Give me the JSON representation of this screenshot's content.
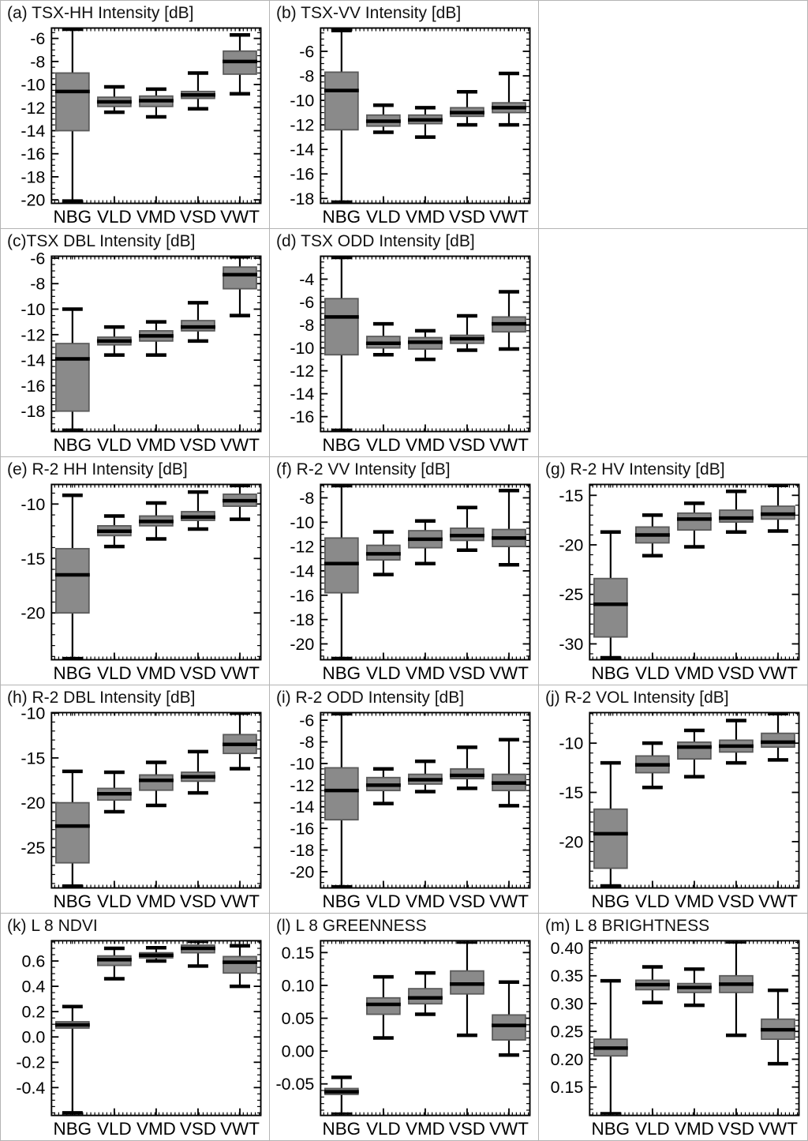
{
  "style": {
    "box_fill": "#8a8a8a",
    "box_border": "#5a5a5a",
    "line_color": "#000000",
    "grid_line": "#b4b4b4",
    "background": "#ffffff"
  },
  "chart_data": [
    {
      "type": "box",
      "title": "(a) TSX-HH Intensity [dB]",
      "categories": [
        "NBG",
        "VLD",
        "VMD",
        "VSD",
        "VWT"
      ],
      "ylim": [
        -20.3,
        -5.1
      ],
      "ytick_vals": [
        -6,
        -8,
        -10,
        -12,
        -14,
        -16,
        -18,
        -20
      ],
      "ytick_labels": [
        "-6",
        "-8",
        "-10",
        "-12",
        "-14",
        "-16",
        "-18",
        "-20"
      ],
      "yminor_div": 4,
      "boxes": [
        {
          "cat": "NBG",
          "low": -20.1,
          "q1": -14.0,
          "median": -10.6,
          "q3": -9.0,
          "high": -5.2
        },
        {
          "cat": "VLD",
          "low": -12.4,
          "q1": -11.9,
          "median": -11.5,
          "q3": -11.1,
          "high": -10.2
        },
        {
          "cat": "VMD",
          "low": -12.8,
          "q1": -11.9,
          "median": -11.4,
          "q3": -11.0,
          "high": -10.4
        },
        {
          "cat": "VSD",
          "low": -12.1,
          "q1": -11.2,
          "median": -10.9,
          "q3": -10.6,
          "high": -9.0
        },
        {
          "cat": "VWT",
          "low": -10.8,
          "q1": -9.1,
          "median": -8.0,
          "q3": -7.1,
          "high": -5.7
        }
      ]
    },
    {
      "type": "box",
      "title": "(b) TSX-VV Intensity [dB]",
      "categories": [
        "NBG",
        "VLD",
        "VMD",
        "VSD",
        "VWT"
      ],
      "ylim": [
        -18.4,
        -4.1
      ],
      "ytick_vals": [
        -6,
        -8,
        -10,
        -12,
        -14,
        -16,
        -18
      ],
      "ytick_labels": [
        "-6",
        "-8",
        "-10",
        "-12",
        "-14",
        "-16",
        "-18"
      ],
      "yminor_div": 4,
      "boxes": [
        {
          "cat": "NBG",
          "low": -18.3,
          "q1": -12.4,
          "median": -9.2,
          "q3": -7.7,
          "high": -4.3
        },
        {
          "cat": "VLD",
          "low": -12.6,
          "q1": -12.1,
          "median": -11.7,
          "q3": -11.2,
          "high": -10.4
        },
        {
          "cat": "VMD",
          "low": -13.0,
          "q1": -11.9,
          "median": -11.6,
          "q3": -11.2,
          "high": -10.6
        },
        {
          "cat": "VSD",
          "low": -12.0,
          "q1": -11.3,
          "median": -11.0,
          "q3": -10.6,
          "high": -9.3
        },
        {
          "cat": "VWT",
          "low": -12.0,
          "q1": -11.0,
          "median": -10.6,
          "q3": -10.2,
          "high": -7.8
        }
      ]
    },
    {
      "type": "box",
      "title": "(c)TSX DBL Intensity [dB]",
      "categories": [
        "NBG",
        "VLD",
        "VMD",
        "VSD",
        "VWT"
      ],
      "ylim": [
        -19.6,
        -5.85
      ],
      "ytick_vals": [
        -6,
        -8,
        -10,
        -12,
        -14,
        -16,
        -18
      ],
      "ytick_labels": [
        "-6",
        "-8",
        "-10",
        "-12",
        "-14",
        "-16",
        "-18"
      ],
      "yminor_div": 4,
      "boxes": [
        {
          "cat": "NBG",
          "low": -19.5,
          "q1": -18.0,
          "median": -13.9,
          "q3": -12.7,
          "high": -10.0
        },
        {
          "cat": "VLD",
          "low": -13.6,
          "q1": -12.8,
          "median": -12.5,
          "q3": -12.2,
          "high": -11.4
        },
        {
          "cat": "VMD",
          "low": -13.6,
          "q1": -12.5,
          "median": -12.1,
          "q3": -11.7,
          "high": -11.0
        },
        {
          "cat": "VSD",
          "low": -12.5,
          "q1": -11.7,
          "median": -11.4,
          "q3": -10.9,
          "high": -9.5
        },
        {
          "cat": "VWT",
          "low": -10.5,
          "q1": -8.4,
          "median": -7.3,
          "q3": -6.7,
          "high": -5.9
        }
      ]
    },
    {
      "type": "box",
      "title": "(d) TSX ODD Intensity [dB]",
      "categories": [
        "NBG",
        "VLD",
        "VMD",
        "VSD",
        "VWT"
      ],
      "ylim": [
        -17.3,
        -2.0
      ],
      "ytick_vals": [
        -4,
        -6,
        -8,
        -10,
        -12,
        -14,
        -16
      ],
      "ytick_labels": [
        "-4",
        "-6",
        "-8",
        "-10",
        "-12",
        "-14",
        "-16"
      ],
      "yminor_div": 4,
      "boxes": [
        {
          "cat": "NBG",
          "low": -17.2,
          "q1": -10.6,
          "median": -7.3,
          "q3": -5.7,
          "high": -2.1
        },
        {
          "cat": "VLD",
          "low": -10.6,
          "q1": -10.0,
          "median": -9.6,
          "q3": -9.0,
          "high": -7.9
        },
        {
          "cat": "VMD",
          "low": -11.0,
          "q1": -10.1,
          "median": -9.5,
          "q3": -9.1,
          "high": -8.5
        },
        {
          "cat": "VSD",
          "low": -10.2,
          "q1": -9.6,
          "median": -9.2,
          "q3": -8.9,
          "high": -7.2
        },
        {
          "cat": "VWT",
          "low": -10.1,
          "q1": -8.6,
          "median": -7.9,
          "q3": -7.3,
          "high": -5.1
        }
      ]
    },
    {
      "type": "box",
      "title": "(e) R-2 HH Intensity [dB]",
      "categories": [
        "NBG",
        "VLD",
        "VMD",
        "VSD",
        "VWT"
      ],
      "ylim": [
        -24.3,
        -8.2
      ],
      "ytick_vals": [
        -10,
        -15,
        -20
      ],
      "ytick_labels": [
        "-10",
        "-15",
        "-20"
      ],
      "yminor_div": 5,
      "boxes": [
        {
          "cat": "NBG",
          "low": -24.2,
          "q1": -20.0,
          "median": -16.5,
          "q3": -14.1,
          "high": -9.2
        },
        {
          "cat": "VLD",
          "low": -13.9,
          "q1": -12.9,
          "median": -12.5,
          "q3": -12.0,
          "high": -11.1
        },
        {
          "cat": "VMD",
          "low": -13.2,
          "q1": -12.0,
          "median": -11.6,
          "q3": -11.1,
          "high": -9.9
        },
        {
          "cat": "VSD",
          "low": -12.3,
          "q1": -11.5,
          "median": -11.2,
          "q3": -10.7,
          "high": -8.9
        },
        {
          "cat": "VWT",
          "low": -11.4,
          "q1": -10.2,
          "median": -9.7,
          "q3": -9.1,
          "high": -8.3
        }
      ]
    },
    {
      "type": "box",
      "title": "(f) R-2 VV Intensity [dB]",
      "categories": [
        "NBG",
        "VLD",
        "VMD",
        "VSD",
        "VWT"
      ],
      "ylim": [
        -21.3,
        -6.9
      ],
      "ytick_vals": [
        -8,
        -10,
        -12,
        -14,
        -16,
        -18,
        -20
      ],
      "ytick_labels": [
        "-8",
        "-10",
        "-12",
        "-14",
        "-16",
        "-18",
        "-20"
      ],
      "yminor_div": 4,
      "boxes": [
        {
          "cat": "NBG",
          "low": -21.2,
          "q1": -15.8,
          "median": -13.4,
          "q3": -11.3,
          "high": -7.0
        },
        {
          "cat": "VLD",
          "low": -14.3,
          "q1": -13.1,
          "median": -12.6,
          "q3": -11.9,
          "high": -10.8
        },
        {
          "cat": "VMD",
          "low": -13.4,
          "q1": -12.1,
          "median": -11.4,
          "q3": -10.7,
          "high": -9.9
        },
        {
          "cat": "VSD",
          "low": -12.3,
          "q1": -11.5,
          "median": -11.1,
          "q3": -10.5,
          "high": -8.8
        },
        {
          "cat": "VWT",
          "low": -13.5,
          "q1": -12.0,
          "median": -11.3,
          "q3": -10.6,
          "high": -7.4
        }
      ]
    },
    {
      "type": "box",
      "title": "(g) R-2 HV Intensity [dB]",
      "categories": [
        "NBG",
        "VLD",
        "VMD",
        "VSD",
        "VWT"
      ],
      "ylim": [
        -31.6,
        -13.9
      ],
      "ytick_vals": [
        -15,
        -20,
        -25,
        -30
      ],
      "ytick_labels": [
        "-15",
        "-20",
        "-25",
        "-30"
      ],
      "yminor_div": 5,
      "boxes": [
        {
          "cat": "NBG",
          "low": -31.4,
          "q1": -29.3,
          "median": -26.0,
          "q3": -23.4,
          "high": -18.7
        },
        {
          "cat": "VLD",
          "low": -21.1,
          "q1": -19.8,
          "median": -19.0,
          "q3": -18.2,
          "high": -17.0
        },
        {
          "cat": "VMD",
          "low": -20.2,
          "q1": -18.5,
          "median": -17.4,
          "q3": -16.8,
          "high": -15.8
        },
        {
          "cat": "VSD",
          "low": -18.7,
          "q1": -17.7,
          "median": -17.3,
          "q3": -16.5,
          "high": -14.6
        },
        {
          "cat": "VWT",
          "low": -18.6,
          "q1": -17.4,
          "median": -16.9,
          "q3": -16.1,
          "high": -14.0
        }
      ]
    },
    {
      "type": "box",
      "title": "(h) R-2 DBL Intensity [dB]",
      "categories": [
        "NBG",
        "VLD",
        "VMD",
        "VSD",
        "VWT"
      ],
      "ylim": [
        -29.5,
        -9.95
      ],
      "ytick_vals": [
        -10,
        -15,
        -20,
        -25
      ],
      "ytick_labels": [
        "-10",
        "-15",
        "-20",
        "-25"
      ],
      "yminor_div": 5,
      "boxes": [
        {
          "cat": "NBG",
          "low": -29.3,
          "q1": -26.7,
          "median": -22.6,
          "q3": -20.0,
          "high": -16.5
        },
        {
          "cat": "VLD",
          "low": -21.0,
          "q1": -19.7,
          "median": -19.0,
          "q3": -18.4,
          "high": -16.6
        },
        {
          "cat": "VMD",
          "low": -20.3,
          "q1": -18.6,
          "median": -17.5,
          "q3": -16.9,
          "high": -15.5
        },
        {
          "cat": "VSD",
          "low": -18.9,
          "q1": -17.6,
          "median": -17.1,
          "q3": -16.6,
          "high": -14.3
        },
        {
          "cat": "VWT",
          "low": -16.2,
          "q1": -14.5,
          "median": -13.5,
          "q3": -12.4,
          "high": -10.0
        }
      ]
    },
    {
      "type": "box",
      "title": "(i) R-2 ODD Intensity [dB]",
      "categories": [
        "NBG",
        "VLD",
        "VMD",
        "VSD",
        "VWT"
      ],
      "ylim": [
        -21.5,
        -5.3
      ],
      "ytick_vals": [
        -6,
        -8,
        -10,
        -12,
        -14,
        -16,
        -18,
        -20
      ],
      "ytick_labels": [
        "-6",
        "-8",
        "-10",
        "-12",
        "-14",
        "-16",
        "-18",
        "-20"
      ],
      "yminor_div": 4,
      "boxes": [
        {
          "cat": "NBG",
          "low": -21.4,
          "q1": -15.2,
          "median": -12.5,
          "q3": -10.4,
          "high": -5.4
        },
        {
          "cat": "VLD",
          "low": -13.7,
          "q1": -12.5,
          "median": -12.0,
          "q3": -11.3,
          "high": -10.5
        },
        {
          "cat": "VMD",
          "low": -12.6,
          "q1": -11.9,
          "median": -11.5,
          "q3": -11.0,
          "high": -9.8
        },
        {
          "cat": "VSD",
          "low": -12.3,
          "q1": -11.4,
          "median": -11.1,
          "q3": -10.5,
          "high": -8.5
        },
        {
          "cat": "VWT",
          "low": -13.9,
          "q1": -12.5,
          "median": -11.8,
          "q3": -11.0,
          "high": -7.8
        }
      ]
    },
    {
      "type": "box",
      "title": "(j) R-2 VOL Intensity [dB]",
      "categories": [
        "NBG",
        "VLD",
        "VMD",
        "VSD",
        "VWT"
      ],
      "ylim": [
        -24.7,
        -6.9
      ],
      "ytick_vals": [
        -10,
        -15,
        -20
      ],
      "ytick_labels": [
        "-10",
        "-15",
        "-20"
      ],
      "yminor_div": 5,
      "boxes": [
        {
          "cat": "NBG",
          "low": -24.5,
          "q1": -22.7,
          "median": -19.2,
          "q3": -16.7,
          "high": -12.0
        },
        {
          "cat": "VLD",
          "low": -14.5,
          "q1": -13.0,
          "median": -12.2,
          "q3": -11.3,
          "high": -10.0
        },
        {
          "cat": "VMD",
          "low": -13.4,
          "q1": -11.6,
          "median": -10.4,
          "q3": -9.9,
          "high": -8.7
        },
        {
          "cat": "VSD",
          "low": -12.0,
          "q1": -10.9,
          "median": -10.3,
          "q3": -9.7,
          "high": -7.7
        },
        {
          "cat": "VWT",
          "low": -11.7,
          "q1": -10.4,
          "median": -9.9,
          "q3": -9.0,
          "high": -7.0
        }
      ]
    },
    {
      "type": "box",
      "title": "(k) L 8 NDVI",
      "categories": [
        "NBG",
        "VLD",
        "VMD",
        "VSD",
        "VWT"
      ],
      "ylim": [
        -0.62,
        0.76
      ],
      "ytick_vals": [
        0.6,
        0.4,
        0.2,
        0.0,
        -0.2,
        -0.4
      ],
      "ytick_labels": [
        "0.6",
        "0.4",
        "0.2",
        "0.0",
        "-0.2",
        "-0.4"
      ],
      "yminor_div": 4,
      "boxes": [
        {
          "cat": "NBG",
          "low": -0.6,
          "q1": 0.07,
          "median": 0.095,
          "q3": 0.12,
          "high": 0.24
        },
        {
          "cat": "VLD",
          "low": 0.46,
          "q1": 0.565,
          "median": 0.61,
          "q3": 0.64,
          "high": 0.7
        },
        {
          "cat": "VMD",
          "low": 0.6,
          "q1": 0.625,
          "median": 0.645,
          "q3": 0.665,
          "high": 0.705
        },
        {
          "cat": "VSD",
          "low": 0.56,
          "q1": 0.665,
          "median": 0.7,
          "q3": 0.725,
          "high": 0.755
        },
        {
          "cat": "VWT",
          "low": 0.4,
          "q1": 0.505,
          "median": 0.59,
          "q3": 0.635,
          "high": 0.72
        }
      ]
    },
    {
      "type": "box",
      "title": "(l) L 8 GREENNESS",
      "categories": [
        "NBG",
        "VLD",
        "VMD",
        "VSD",
        "VWT"
      ],
      "ylim": [
        -0.098,
        0.168
      ],
      "ytick_vals": [
        0.15,
        0.1,
        0.05,
        0.0,
        -0.05
      ],
      "ytick_labels": [
        "0.15",
        "0.10",
        "0.05",
        "0.00",
        "-0.05"
      ],
      "yminor_div": 5,
      "boxes": [
        {
          "cat": "NBG",
          "low": -0.096,
          "q1": -0.066,
          "median": -0.062,
          "q3": -0.057,
          "high": -0.04
        },
        {
          "cat": "VLD",
          "low": 0.02,
          "q1": 0.056,
          "median": 0.071,
          "q3": 0.081,
          "high": 0.113
        },
        {
          "cat": "VMD",
          "low": 0.056,
          "q1": 0.072,
          "median": 0.081,
          "q3": 0.095,
          "high": 0.119
        },
        {
          "cat": "VSD",
          "low": 0.024,
          "q1": 0.087,
          "median": 0.102,
          "q3": 0.122,
          "high": 0.166
        },
        {
          "cat": "VWT",
          "low": -0.006,
          "q1": 0.017,
          "median": 0.039,
          "q3": 0.055,
          "high": 0.105
        }
      ]
    },
    {
      "type": "box",
      "title": "(m) L 8 BRIGHTNESS",
      "categories": [
        "NBG",
        "VLD",
        "VMD",
        "VSD",
        "VWT"
      ],
      "ylim": [
        0.099,
        0.413
      ],
      "ytick_vals": [
        0.4,
        0.35,
        0.3,
        0.25,
        0.2,
        0.15
      ],
      "ytick_labels": [
        "0.40",
        "0.35",
        "0.30",
        "0.25",
        "0.20",
        "0.15"
      ],
      "yminor_div": 5,
      "boxes": [
        {
          "cat": "NBG",
          "low": 0.102,
          "q1": 0.206,
          "median": 0.22,
          "q3": 0.236,
          "high": 0.341
        },
        {
          "cat": "VLD",
          "low": 0.302,
          "q1": 0.325,
          "median": 0.334,
          "q3": 0.342,
          "high": 0.366
        },
        {
          "cat": "VMD",
          "low": 0.297,
          "q1": 0.32,
          "median": 0.329,
          "q3": 0.336,
          "high": 0.362
        },
        {
          "cat": "VSD",
          "low": 0.243,
          "q1": 0.32,
          "median": 0.335,
          "q3": 0.35,
          "high": 0.411
        },
        {
          "cat": "VWT",
          "low": 0.192,
          "q1": 0.236,
          "median": 0.253,
          "q3": 0.272,
          "high": 0.324
        }
      ]
    }
  ],
  "grid": {
    "rows": 5,
    "cols": 3,
    "layout": [
      [
        0,
        1,
        null
      ],
      [
        2,
        3,
        null
      ],
      [
        4,
        5,
        6
      ],
      [
        7,
        8,
        9
      ],
      [
        10,
        11,
        12
      ]
    ]
  }
}
